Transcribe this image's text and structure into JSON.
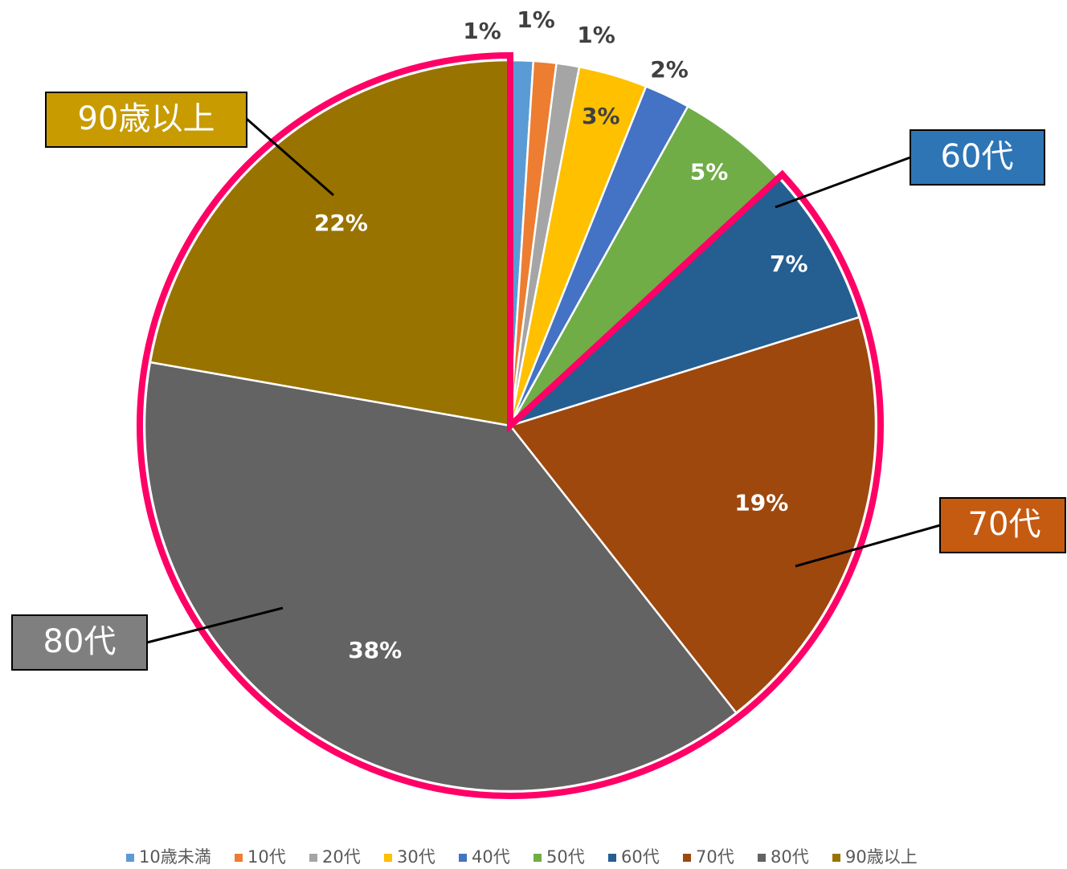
{
  "chart_data": {
    "type": "pie",
    "categories": [
      "10歳未満",
      "10代",
      "20代",
      "30代",
      "40代",
      "50代",
      "60代",
      "70代",
      "80代",
      "90歳以上"
    ],
    "values": [
      1,
      1,
      1,
      3,
      2,
      5,
      7,
      19,
      38,
      22
    ],
    "value_labels": [
      "1%",
      "1%",
      "1%",
      "3%",
      "2%",
      "5%",
      "7%",
      "19%",
      "38%",
      "22%"
    ],
    "colors": [
      "#5B9BD5",
      "#ED7D31",
      "#A5A5A5",
      "#FFC000",
      "#4472C4",
      "#70AD47",
      "#255E91",
      "#9E480E",
      "#636363",
      "#997300"
    ],
    "legend": "bottom"
  }
}
